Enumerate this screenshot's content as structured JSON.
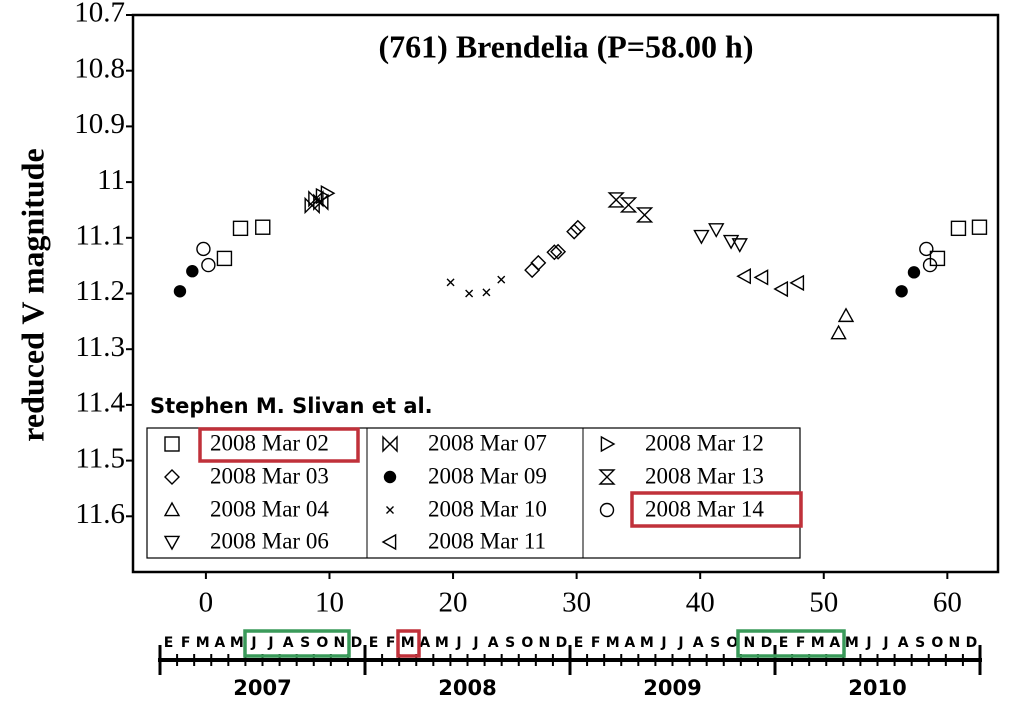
{
  "chart_data": {
    "type": "scatter",
    "title": "(761) Brendelia   (P=58.00 h)",
    "ylabel": "reduced V magnitude",
    "annotation": "Stephen M. Slivan et al.",
    "xlim": [
      -5.9,
      64.1
    ],
    "xticks": [
      0,
      10,
      20,
      30,
      40,
      50,
      60
    ],
    "ylim": [
      10.7,
      11.7
    ],
    "yticks": [
      10.7,
      10.8,
      10.9,
      11,
      11.1,
      11.2,
      11.3,
      11.4,
      11.5,
      11.6
    ],
    "y_inverted": true,
    "series": [
      {
        "name": "2008 Mar 02",
        "marker": "square",
        "color": "#000000",
        "x": [
          1.5,
          2.8,
          4.6,
          59.2,
          60.9,
          62.6
        ],
        "y": [
          11.137,
          11.083,
          11.081,
          11.137,
          11.083,
          11.081
        ]
      },
      {
        "name": "2008 Mar 03",
        "marker": "diamond",
        "color": "#000000",
        "x": [
          26.4,
          26.9,
          28.2,
          28.5,
          29.8,
          30.1
        ],
        "y": [
          11.158,
          11.145,
          11.126,
          11.125,
          11.089,
          11.082
        ]
      },
      {
        "name": "2008 Mar 04",
        "marker": "triangle-up",
        "color": "#000000",
        "x": [
          51.2,
          51.8
        ],
        "y": [
          11.271,
          11.24
        ]
      },
      {
        "name": "2008 Mar 06",
        "marker": "triangle-down",
        "color": "#000000",
        "x": [
          40.1,
          41.3,
          42.5,
          43.2
        ],
        "y": [
          11.097,
          11.085,
          11.106,
          11.112
        ]
      },
      {
        "name": "2008 Mar 07",
        "marker": "bowtie",
        "color": "#000000",
        "x": [
          8.6,
          8.9,
          9.3
        ],
        "y": [
          11.042,
          11.03,
          11.036
        ]
      },
      {
        "name": "2008 Mar 09",
        "marker": "filled-circle",
        "color": "#000000",
        "x": [
          -2.1,
          -1.1,
          56.3,
          57.3
        ],
        "y": [
          11.196,
          11.16,
          11.196,
          11.162
        ]
      },
      {
        "name": "2008 Mar 10",
        "marker": "x",
        "color": "#000000",
        "x": [
          19.8,
          21.3,
          22.7,
          23.9
        ],
        "y": [
          11.18,
          11.2,
          11.198,
          11.175
        ]
      },
      {
        "name": "2008 Mar 11",
        "marker": "triangle-left",
        "color": "#000000",
        "x": [
          43.6,
          45.0,
          46.6,
          47.9
        ],
        "y": [
          11.169,
          11.171,
          11.192,
          11.181
        ]
      },
      {
        "name": "2008 Mar 12",
        "marker": "triangle-right",
        "color": "#000000",
        "x": [
          9.4,
          9.8
        ],
        "y": [
          11.025,
          11.02
        ]
      },
      {
        "name": "2008 Mar 13",
        "marker": "hourglass",
        "color": "#000000",
        "x": [
          33.2,
          34.2,
          35.5
        ],
        "y": [
          11.032,
          11.041,
          11.059
        ]
      },
      {
        "name": "2008 Mar 14",
        "marker": "circle",
        "color": "#000000",
        "x": [
          -0.2,
          0.2,
          58.3,
          58.6
        ],
        "y": [
          11.12,
          11.149,
          11.12,
          11.149
        ]
      }
    ]
  },
  "timeline": {
    "months": [
      "E",
      "F",
      "M",
      "A",
      "M",
      "J",
      "J",
      "A",
      "S",
      "O",
      "N",
      "D"
    ],
    "years": [
      "2007",
      "2008",
      "2009",
      "2010"
    ]
  }
}
